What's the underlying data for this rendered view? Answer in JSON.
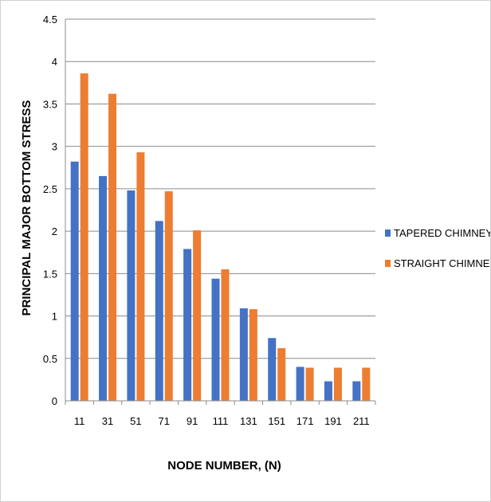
{
  "chart_data": {
    "type": "bar",
    "xlabel": "NODE NUMBER, (N)",
    "ylabel": "PRINCIPAL MAJOR BOTTOM STRESS",
    "categories": [
      "11",
      "31",
      "51",
      "71",
      "91",
      "111",
      "131",
      "151",
      "171",
      "191",
      "211"
    ],
    "series": [
      {
        "name": "TAPERED CHIMNEY",
        "color": "#4472C4",
        "values": [
          2.82,
          2.65,
          2.48,
          2.12,
          1.79,
          1.44,
          1.09,
          0.74,
          0.4,
          0.23,
          0.23
        ]
      },
      {
        "name": "STRAIGHT CHIMNEY",
        "color": "#ED7D31",
        "values": [
          3.86,
          3.62,
          2.93,
          2.47,
          2.01,
          1.55,
          1.08,
          0.62,
          0.39,
          0.39,
          0.39
        ]
      }
    ],
    "ylim": [
      0,
      4.5
    ],
    "yticks": [
      "0",
      "0.5",
      "1",
      "1.5",
      "2",
      "2.5",
      "3",
      "3.5",
      "4",
      "4.5"
    ],
    "grid": true,
    "legend_position": "right"
  }
}
